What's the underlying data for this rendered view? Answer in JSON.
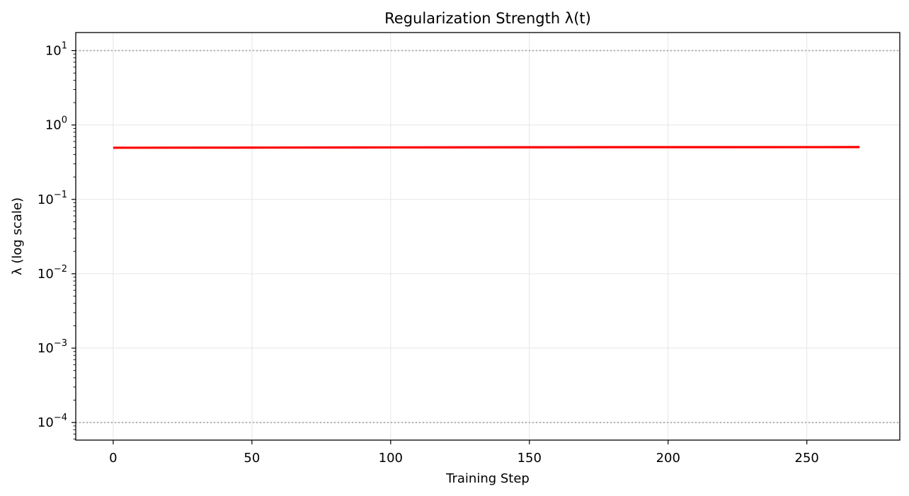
{
  "chart_data": {
    "type": "line",
    "title": "Regularization Strength λ(t)",
    "xlabel": "Training Step",
    "ylabel": "λ (log scale)",
    "x_scale": "linear",
    "y_scale": "log",
    "xlim": [
      -13.5,
      283.5
    ],
    "ylim": [
      5.8e-05,
      17.5
    ],
    "x_ticks": [
      0,
      50,
      100,
      150,
      200,
      250
    ],
    "y_ticks": [
      {
        "base": "10",
        "exp": "−4",
        "value": 0.0001
      },
      {
        "base": "10",
        "exp": "−3",
        "value": 0.001
      },
      {
        "base": "10",
        "exp": "−2",
        "value": 0.01
      },
      {
        "base": "10",
        "exp": "−1",
        "value": 0.1
      },
      {
        "base": "10",
        "exp": "0",
        "value": 1
      },
      {
        "base": "10",
        "exp": "1",
        "value": 10
      }
    ],
    "grid": true,
    "reference_lines": [
      {
        "y": 10,
        "style": "dotted",
        "color": "#b0b0b0"
      },
      {
        "y": 0.0001,
        "style": "dotted",
        "color": "#b0b0b0"
      }
    ],
    "series": [
      {
        "color": "#ff0000",
        "x": [
          0,
          50,
          100,
          150,
          200,
          269
        ],
        "y": [
          0.495,
          0.497,
          0.5,
          0.502,
          0.503,
          0.505
        ]
      }
    ]
  }
}
